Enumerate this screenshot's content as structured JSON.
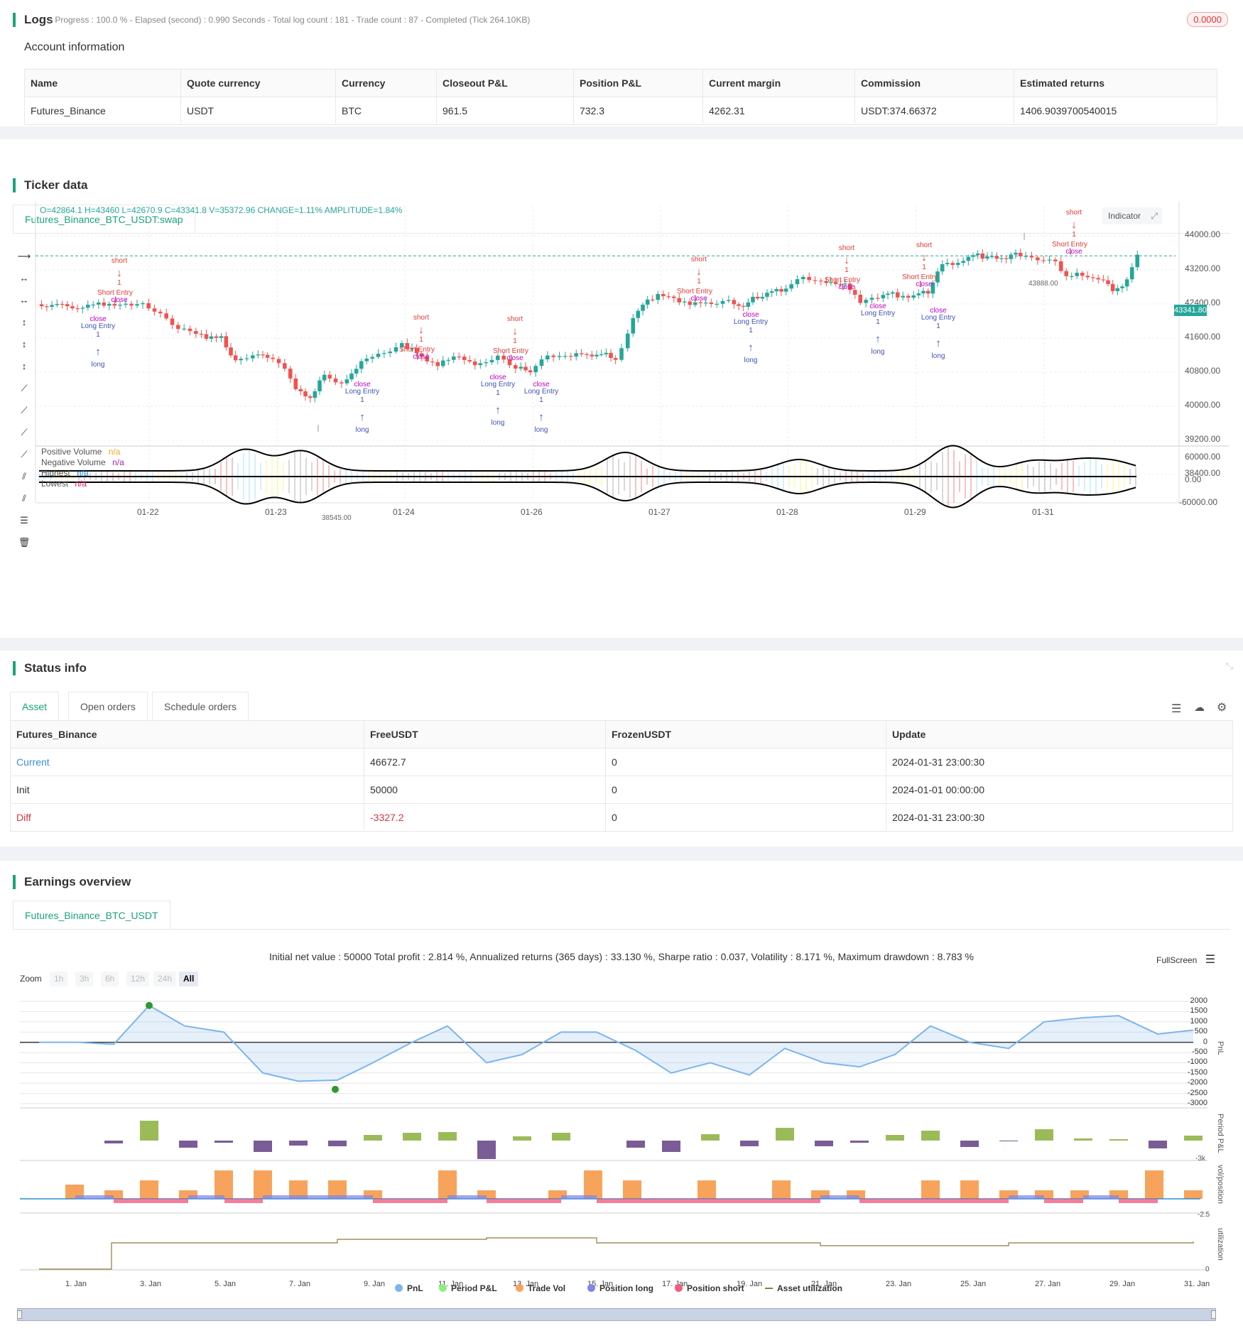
{
  "logs": {
    "title": "Logs",
    "status": "- Progress : 100.0 % - Elapsed (second) : 0.990  Seconds - Total log count : 181 - Trade count : 87 - Completed (Tick 264.10KB)",
    "badge": "0.0000"
  },
  "account": {
    "title": "Account information",
    "headers": [
      "Name",
      "Quote currency",
      "Currency",
      "Closeout P&L",
      "Position P&L",
      "Current margin",
      "Commission",
      "Estimated returns"
    ],
    "row": [
      "Futures_Binance",
      "USDT",
      "BTC",
      "961.5",
      "732.3",
      "4262.31",
      "USDT:374.66372",
      "1406.9039700540015"
    ]
  },
  "ticker": {
    "title": "Ticker data",
    "tab": "Futures_Binance_BTC_USDT:swap",
    "ohlc": "O=42864.1 H=43460 L=42670.9 C=43341.8 V=35372.96 CHANGE=1.11% AMPLITUDE=1.84%",
    "indicator_btn": "Indicator",
    "last_price": "43341.80",
    "high_label": "43888.00",
    "low_label": "38545.00",
    "price_ticks": [
      "44000.00",
      "43200.00",
      "42400.00",
      "41600.00",
      "40800.00",
      "40000.00",
      "39200.00",
      "38400.00"
    ],
    "vol_ticks": [
      "60000.00",
      "0.00",
      "-60000.00"
    ],
    "date_ticks": [
      "01-22",
      "01-23",
      "01-24",
      "01-26",
      "01-27",
      "01-28",
      "01-29",
      "01-31"
    ],
    "sub_legend": [
      {
        "name": "Positive Volume",
        "val": "n/a",
        "color": "#f5a623"
      },
      {
        "name": "Negative Volume",
        "val": "n/a",
        "color": "#9c27b0"
      },
      {
        "name": "Highest",
        "val": "n/a",
        "color": "#2196f3"
      },
      {
        "name": "Lowest",
        "val": "n/a",
        "color": "#e91e63"
      }
    ],
    "signals": {
      "short": "short",
      "short_entry": "Short Entry",
      "long": "long",
      "long_entry": "Long Entry",
      "close": "close",
      "one": "1"
    },
    "colors": {
      "up": "#26a69a",
      "down": "#ef5350",
      "accent": "#1aa37a"
    }
  },
  "status": {
    "title": "Status info",
    "tabs": [
      "Asset",
      "Open orders",
      "Schedule orders"
    ],
    "headers": [
      "Futures_Binance",
      "FreeUSDT",
      "FrozenUSDT",
      "Update"
    ],
    "rows": [
      [
        "Current",
        "46672.7",
        "0",
        "2024-01-31 23:00:30"
      ],
      [
        "Init",
        "50000",
        "0",
        "2024-01-01 00:00:00"
      ],
      [
        "Diff",
        "-3327.2",
        "0",
        "2024-01-31 23:00:30"
      ]
    ]
  },
  "earnings": {
    "title": "Earnings overview",
    "tab": "Futures_Binance_BTC_USDT",
    "summary": "Initial net value : 50000 Total profit : 2.814 %, Annualized returns (365 days) : 33.130 %, Sharpe ratio : 0.037, Volatility : 8.171 %, Maximum drawdown : 8.783 %",
    "fullscreen": "FullScreen",
    "zoom_label": "Zoom",
    "zoom_opts": [
      "1h",
      "3h",
      "6h",
      "12h",
      "24h",
      "All"
    ],
    "pnl_ticks": [
      "2000",
      "1500",
      "1000",
      "500",
      "0",
      "-500",
      "-1000",
      "-1500",
      "-2000",
      "-2500",
      "-3000"
    ],
    "side_labels": [
      "PnL",
      "Period P&L",
      "vol/position",
      "utilization"
    ],
    "period_tick": "-3k",
    "vol_tick": "-2.5",
    "util_tick": "0",
    "x_dates": [
      "1. Jan",
      "3. Jan",
      "5. Jan",
      "7. Jan",
      "9. Jan",
      "11. Jan",
      "13. Jan",
      "15. Jan",
      "17. Jan",
      "19. Jan",
      "21. Jan",
      "23. Jan",
      "25. Jan",
      "27. Jan",
      "29. Jan",
      "31. Jan"
    ],
    "legend": [
      {
        "name": "PnL",
        "color": "#7cb5ec"
      },
      {
        "name": "Period P&L",
        "color": "#90ed7d"
      },
      {
        "name": "Trade Vol",
        "color": "#f7a35c"
      },
      {
        "name": "Position long",
        "color": "#8085e9"
      },
      {
        "name": "Position short",
        "color": "#f15c80"
      },
      {
        "name": "Asset utilization",
        "color": "#8d7b3a"
      }
    ]
  }
}
